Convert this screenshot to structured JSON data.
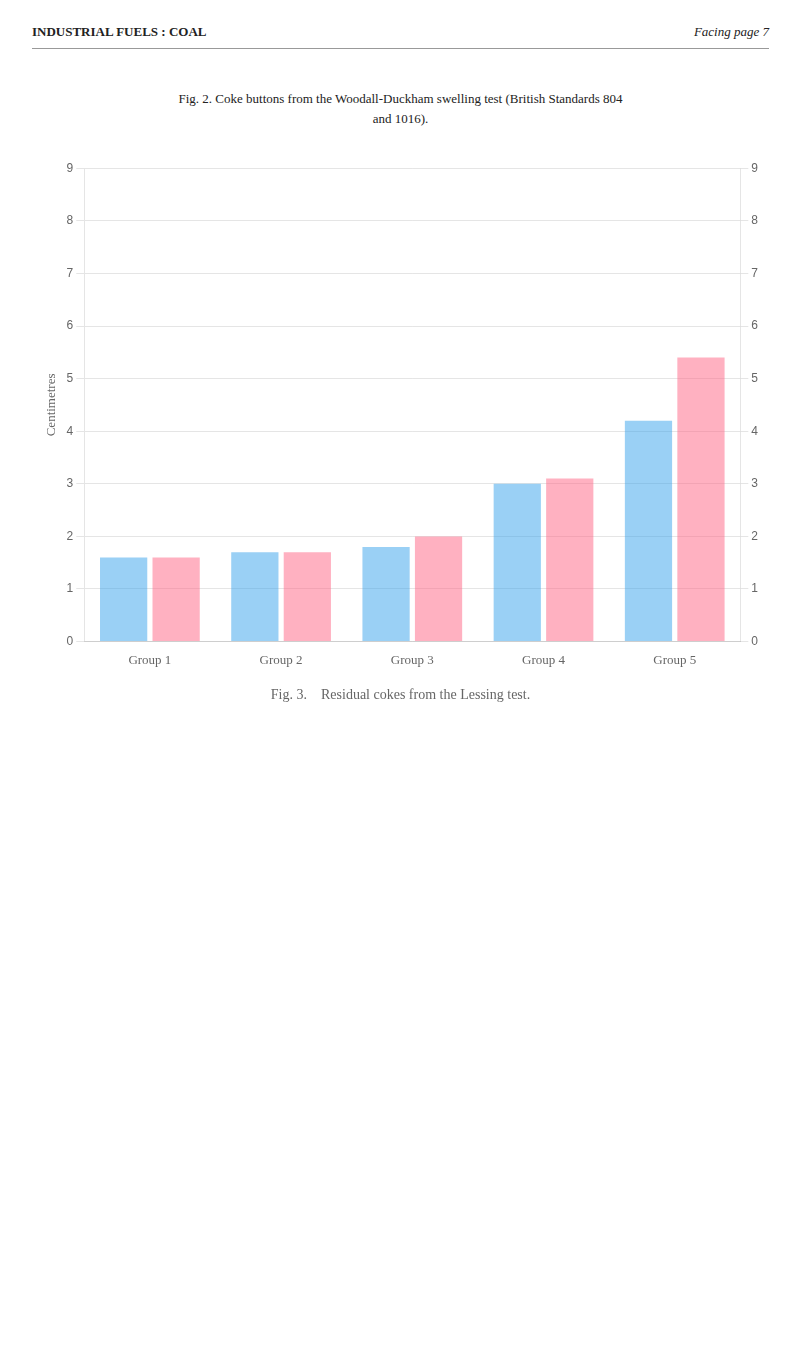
{
  "chart_data": {
    "type": "bar",
    "title": "Fig. 3.    Residual cokes from the Lessing test.",
    "annotations": [
      "INDUSTRIAL FUELS :  COAL",
      "Facing page 7",
      "Fig. 2.  Coke buttons from the Woodall-Duckham swelling test (British Standards 804",
      "and 1016)."
    ],
    "y_label": "Centimetres",
    "categories": [
      "Group 1",
      "Group 2",
      "Group 3",
      "Group 4",
      "Group 5"
    ],
    "series": [
      {
        "values": [
          1.6,
          1.7,
          1.8,
          3.0,
          4.2
        ]
      },
      {
        "values": [
          1.6,
          1.7,
          2.0,
          3.1,
          5.4
        ]
      }
    ],
    "ylim": [
      0,
      9
    ],
    "yticks": [
      0,
      1,
      2,
      3,
      4,
      5,
      6,
      7,
      8,
      9
    ],
    "y2lim": [
      0,
      9
    ],
    "y2ticks": [
      0,
      1,
      2,
      3,
      4,
      5,
      6,
      7,
      8,
      9
    ],
    "grid": true
  }
}
